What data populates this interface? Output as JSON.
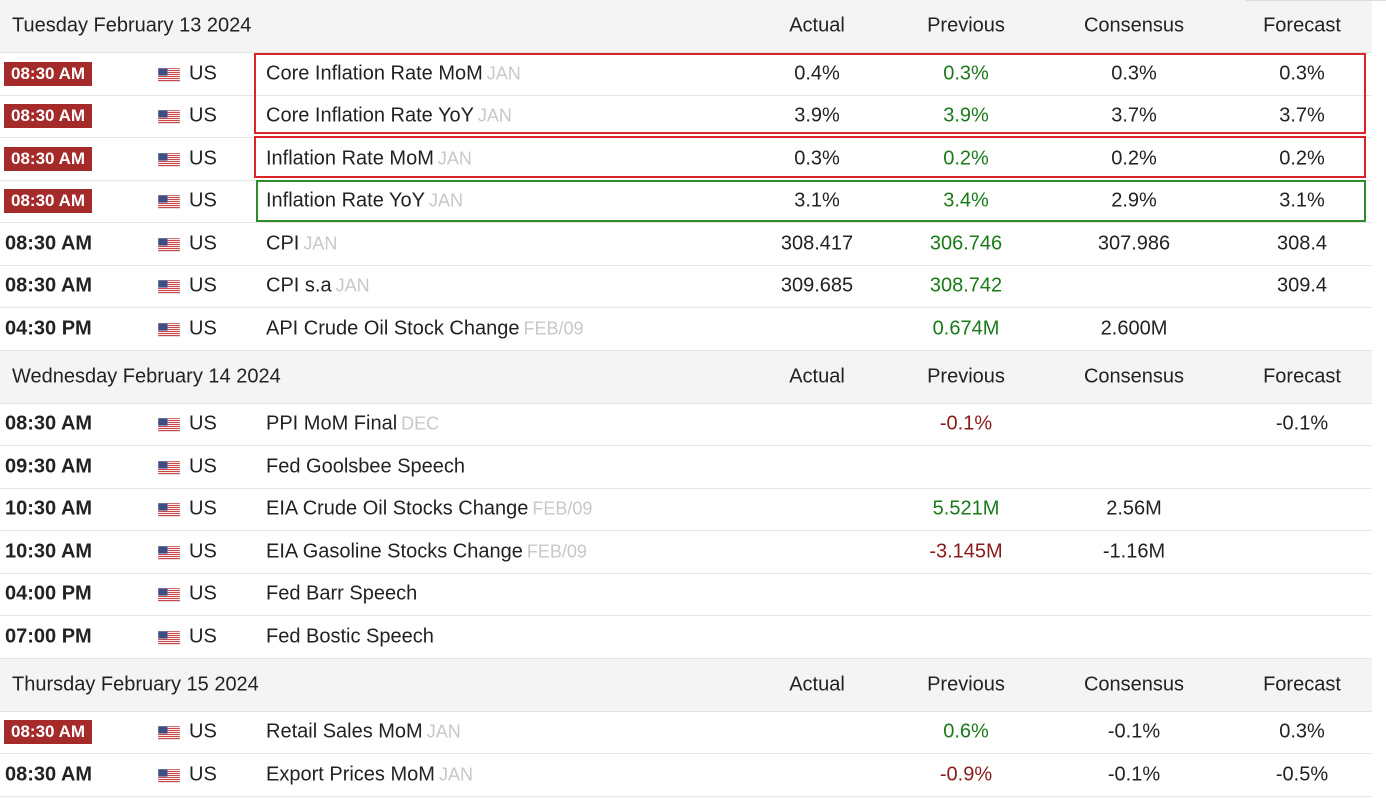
{
  "colors": {
    "badge": "#a52a2a",
    "green": "#1a7a1a",
    "red": "#8b1a1a",
    "highlight_red": "#d9242a",
    "highlight_green": "#2e8b2e"
  },
  "columns": {
    "actual": "Actual",
    "previous": "Previous",
    "consensus": "Consensus",
    "forecast": "Forecast"
  },
  "days": [
    {
      "date": "Tuesday February 13 2024",
      "events": [
        {
          "time": "08:30 AM",
          "badge": true,
          "country": "US",
          "name": "Core Inflation Rate MoM",
          "ref": "JAN",
          "actual": "0.4%",
          "previous": "0.3%",
          "previous_color": "green",
          "consensus": "0.3%",
          "forecast": "0.3%"
        },
        {
          "time": "08:30 AM",
          "badge": true,
          "country": "US",
          "name": "Core Inflation Rate YoY",
          "ref": "JAN",
          "actual": "3.9%",
          "previous": "3.9%",
          "previous_color": "green",
          "consensus": "3.7%",
          "forecast": "3.7%"
        },
        {
          "time": "08:30 AM",
          "badge": true,
          "country": "US",
          "name": "Inflation Rate MoM",
          "ref": "JAN",
          "actual": "0.3%",
          "previous": "0.2%",
          "previous_color": "green",
          "consensus": "0.2%",
          "forecast": "0.2%"
        },
        {
          "time": "08:30 AM",
          "badge": true,
          "country": "US",
          "name": "Inflation Rate YoY",
          "ref": "JAN",
          "actual": "3.1%",
          "previous": "3.4%",
          "previous_color": "green",
          "consensus": "2.9%",
          "forecast": "3.1%"
        },
        {
          "time": "08:30 AM",
          "badge": false,
          "country": "US",
          "name": "CPI",
          "ref": "JAN",
          "actual": "308.417",
          "previous": "306.746",
          "previous_color": "green",
          "consensus": "307.986",
          "forecast": "308.4"
        },
        {
          "time": "08:30 AM",
          "badge": false,
          "country": "US",
          "name": "CPI s.a",
          "ref": "JAN",
          "actual": "309.685",
          "previous": "308.742",
          "previous_color": "green",
          "consensus": "",
          "forecast": "309.4"
        },
        {
          "time": "04:30 PM",
          "badge": false,
          "country": "US",
          "name": "API Crude Oil Stock Change",
          "ref": "FEB/09",
          "actual": "",
          "previous": "0.674M",
          "previous_color": "green",
          "consensus": "2.600M",
          "forecast": ""
        }
      ]
    },
    {
      "date": "Wednesday February 14 2024",
      "events": [
        {
          "time": "08:30 AM",
          "badge": false,
          "country": "US",
          "name": "PPI MoM Final",
          "ref": "DEC",
          "actual": "",
          "previous": "-0.1%",
          "previous_color": "red",
          "consensus": "",
          "forecast": "-0.1%"
        },
        {
          "time": "09:30 AM",
          "badge": false,
          "country": "US",
          "name": "Fed Goolsbee Speech",
          "ref": "",
          "actual": "",
          "previous": "",
          "previous_color": "",
          "consensus": "",
          "forecast": ""
        },
        {
          "time": "10:30 AM",
          "badge": false,
          "country": "US",
          "name": "EIA Crude Oil Stocks Change",
          "ref": "FEB/09",
          "actual": "",
          "previous": "5.521M",
          "previous_color": "green",
          "consensus": "2.56M",
          "forecast": ""
        },
        {
          "time": "10:30 AM",
          "badge": false,
          "country": "US",
          "name": "EIA Gasoline Stocks Change",
          "ref": "FEB/09",
          "actual": "",
          "previous": "-3.145M",
          "previous_color": "red",
          "consensus": "-1.16M",
          "forecast": ""
        },
        {
          "time": "04:00 PM",
          "badge": false,
          "country": "US",
          "name": "Fed Barr Speech",
          "ref": "",
          "actual": "",
          "previous": "",
          "previous_color": "",
          "consensus": "",
          "forecast": ""
        },
        {
          "time": "07:00 PM",
          "badge": false,
          "country": "US",
          "name": "Fed Bostic Speech",
          "ref": "",
          "actual": "",
          "previous": "",
          "previous_color": "",
          "consensus": "",
          "forecast": ""
        }
      ]
    },
    {
      "date": "Thursday February 15 2024",
      "events": [
        {
          "time": "08:30 AM",
          "badge": true,
          "country": "US",
          "name": "Retail Sales MoM",
          "ref": "JAN",
          "actual": "",
          "previous": "0.6%",
          "previous_color": "green",
          "consensus": "-0.1%",
          "forecast": "0.3%"
        },
        {
          "time": "08:30 AM",
          "badge": false,
          "country": "US",
          "name": "Export Prices MoM",
          "ref": "JAN",
          "actual": "",
          "previous": "-0.9%",
          "previous_color": "red",
          "consensus": "-0.1%",
          "forecast": "-0.5%"
        }
      ]
    }
  ]
}
